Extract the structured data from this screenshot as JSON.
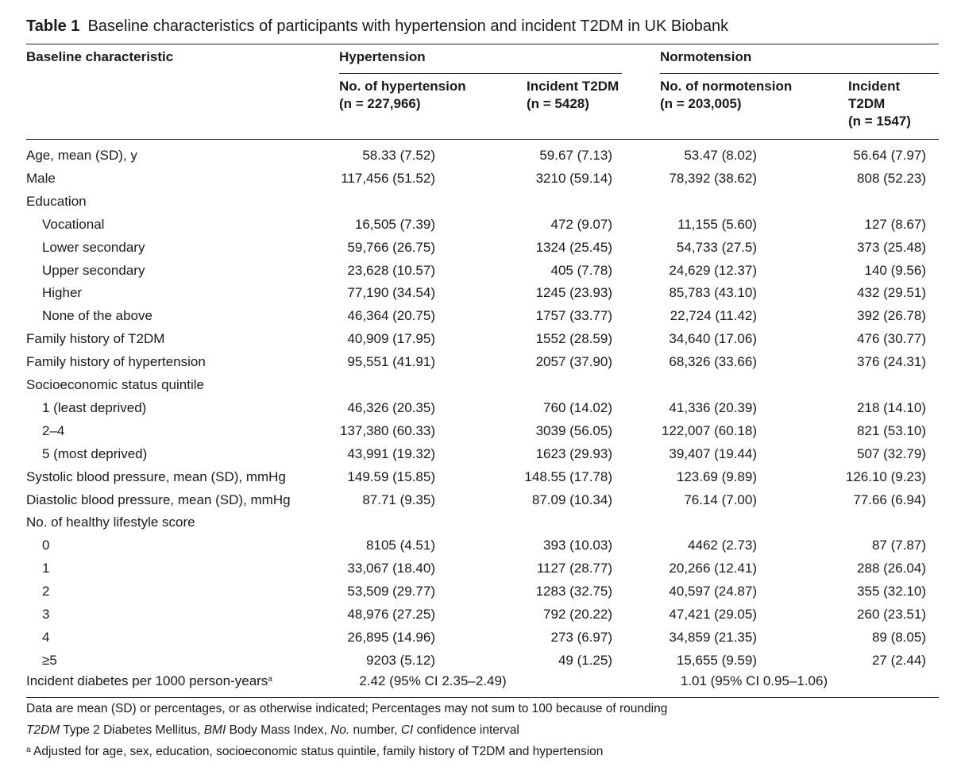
{
  "table": {
    "label": "Table 1",
    "title": "Baseline characteristics of participants with hypertension and incident T2DM in UK Biobank",
    "headers": {
      "characteristic": "Baseline characteristic",
      "group_hyp": "Hypertension",
      "group_norm": "Normotension",
      "hyp_n_line1": "No. of hypertension",
      "hyp_n_line2": "(n = 227,966)",
      "hyp_inc_line1": "Incident T2DM",
      "hyp_inc_line2": "(n = 5428)",
      "norm_n_line1": "No. of normotension",
      "norm_n_line2": "(n = 203,005)",
      "norm_inc_line1": "Incident",
      "norm_inc_line2": "T2DM",
      "norm_inc_line3": "(n = 1547)"
    },
    "rows": [
      {
        "label": "Age, mean (SD), y",
        "indent": false,
        "v": [
          "58.33 (7.52)",
          "59.67 (7.13)",
          "53.47 (8.02)",
          "56.64 (7.97)"
        ]
      },
      {
        "label": "Male",
        "indent": false,
        "v": [
          "117,456 (51.52)",
          "3210 (59.14)",
          "78,392 (38.62)",
          "808 (52.23)"
        ]
      },
      {
        "label": "Education",
        "indent": false,
        "v": []
      },
      {
        "label": "Vocational",
        "indent": true,
        "v": [
          "16,505 (7.39)",
          "472 (9.07)",
          "11,155 (5.60)",
          "127 (8.67)"
        ]
      },
      {
        "label": "Lower secondary",
        "indent": true,
        "v": [
          "59,766 (26.75)",
          "1324 (25.45)",
          "54,733 (27.5)",
          "373 (25.48)"
        ]
      },
      {
        "label": "Upper secondary",
        "indent": true,
        "v": [
          "23,628 (10.57)",
          "405 (7.78)",
          "24,629 (12.37)",
          "140 (9.56)"
        ]
      },
      {
        "label": "Higher",
        "indent": true,
        "v": [
          "77,190 (34.54)",
          "1245 (23.93)",
          "85,783 (43.10)",
          "432 (29.51)"
        ]
      },
      {
        "label": "None of the above",
        "indent": true,
        "v": [
          "46,364 (20.75)",
          "1757 (33.77)",
          "22,724 (11.42)",
          "392 (26.78)"
        ]
      },
      {
        "label": "Family history of T2DM",
        "indent": false,
        "v": [
          "40,909 (17.95)",
          "1552 (28.59)",
          "34,640 (17.06)",
          "476 (30.77)"
        ]
      },
      {
        "label": "Family history of hypertension",
        "indent": false,
        "v": [
          "95,551 (41.91)",
          "2057 (37.90)",
          "68,326 (33.66)",
          "376 (24.31)"
        ]
      },
      {
        "label": "Socioeconomic status quintile",
        "indent": false,
        "v": []
      },
      {
        "label": "1 (least deprived)",
        "indent": true,
        "v": [
          "46,326 (20.35)",
          "760 (14.02)",
          "41,336 (20.39)",
          "218 (14.10)"
        ]
      },
      {
        "label": "2–4",
        "indent": true,
        "v": [
          "137,380 (60.33)",
          "3039 (56.05)",
          "122,007 (60.18)",
          "821 (53.10)"
        ]
      },
      {
        "label": "5 (most deprived)",
        "indent": true,
        "v": [
          "43,991 (19.32)",
          "1623 (29.93)",
          "39,407 (19.44)",
          "507 (32.79)"
        ]
      },
      {
        "label": "Systolic blood pressure, mean (SD), mmHg",
        "indent": false,
        "v": [
          "149.59 (15.85)",
          "148.55 (17.78)",
          "123.69 (9.89)",
          "126.10 (9.23)"
        ]
      },
      {
        "label": "Diastolic blood pressure, mean (SD), mmHg",
        "indent": false,
        "v": [
          "87.71 (9.35)",
          "87.09 (10.34)",
          "76.14 (7.00)",
          "77.66 (6.94)"
        ]
      },
      {
        "label": "No. of healthy lifestyle score",
        "indent": false,
        "v": []
      },
      {
        "label": "0",
        "indent": true,
        "v": [
          "8105 (4.51)",
          "393 (10.03)",
          "4462 (2.73)",
          "87 (7.87)"
        ]
      },
      {
        "label": "1",
        "indent": true,
        "v": [
          "33,067 (18.40)",
          "1127 (28.77)",
          "20,266 (12.41)",
          "288 (26.04)"
        ]
      },
      {
        "label": "2",
        "indent": true,
        "v": [
          "53,509 (29.77)",
          "1283 (32.75)",
          "40,597 (24.87)",
          "355 (32.10)"
        ]
      },
      {
        "label": "3",
        "indent": true,
        "v": [
          "48,976 (27.25)",
          "792 (20.22)",
          "47,421 (29.05)",
          "260 (23.51)"
        ]
      },
      {
        "label": "4",
        "indent": true,
        "v": [
          "26,895 (14.96)",
          "273 (6.97)",
          "34,859 (21.35)",
          "89 (8.05)"
        ]
      },
      {
        "label": "≥5",
        "indent": true,
        "v": [
          "9203 (5.12)",
          "49 (1.25)",
          "15,655 (9.59)",
          "27 (2.44)"
        ]
      }
    ],
    "incidence_row": {
      "label": "Incident diabetes per 1000 person-years",
      "label_sup": "a",
      "hyp": "2.42 (95% CI 2.35–2.49)",
      "norm": "1.01 (95% CI 0.95–1.06)"
    },
    "footnotes": {
      "note1": "Data are mean (SD) or percentages, or as otherwise indicated; Percentages may not sum to 100 because of rounding",
      "abbr": [
        {
          "term": "T2DM",
          "def": " Type 2 Diabetes Mellitus, "
        },
        {
          "term": "BMI",
          "def": " Body Mass Index, "
        },
        {
          "term": "No.",
          "def": " number, "
        },
        {
          "term": "CI",
          "def": " confidence interval"
        }
      ],
      "note_a_marker": "a",
      "note_a": " Adjusted for age, sex, education, socioeconomic status quintile, family history of T2DM and hypertension"
    }
  }
}
